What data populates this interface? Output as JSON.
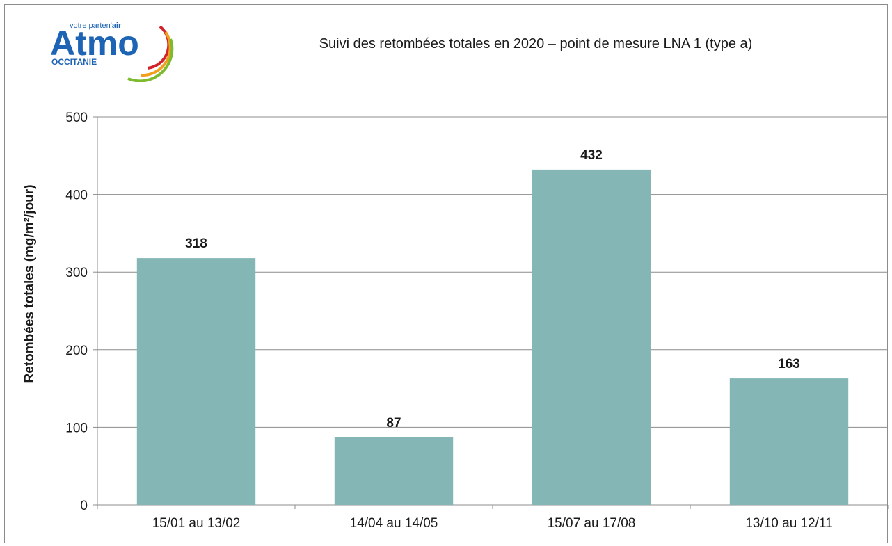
{
  "logo": {
    "brand": "Atmo",
    "tagline_prefix": "votre parten'",
    "tagline_suffix": "air",
    "region": "OCCITANIE"
  },
  "colors": {
    "bar": "#84b6b6",
    "axis": "#8c8c8c",
    "grid": "#8c8c8c",
    "logo_blue": "#1e64b4",
    "logo_green": "#7dbb2e",
    "logo_orange": "#f0a01e",
    "logo_red": "#d2232a"
  },
  "chart_data": {
    "type": "bar",
    "title": "Suivi des retombées totales en 2020 – point de mesure LNA 1 (type a)",
    "xlabel": "",
    "ylabel": "Retombées totales (mg/m²/jour)",
    "categories": [
      "15/01 au 13/02",
      "14/04 au 14/05",
      "15/07 au 17/08",
      "13/10 au 12/11"
    ],
    "values": [
      318,
      87,
      432,
      163
    ],
    "data_labels": [
      "318",
      "87",
      "432",
      "163"
    ],
    "ylim": [
      0,
      500
    ],
    "yticks": [
      0,
      100,
      200,
      300,
      400,
      500
    ],
    "grid": true,
    "legend": "none"
  }
}
